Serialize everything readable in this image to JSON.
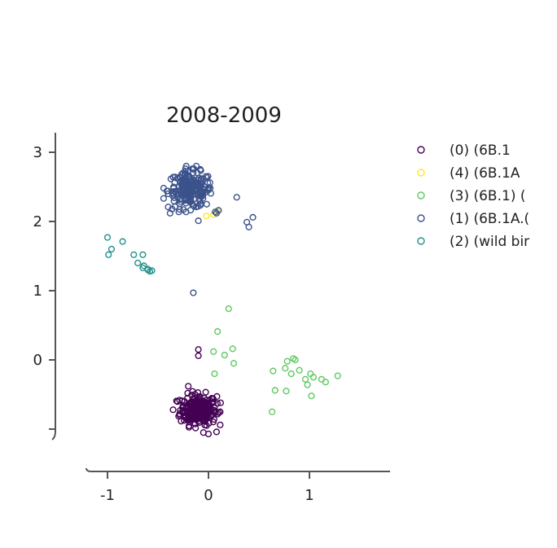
{
  "chart_data": {
    "type": "scatter",
    "title": "2008-2009",
    "xlabel": "",
    "ylabel": "",
    "xlim": [
      -1.05,
      1.8
    ],
    "ylim": [
      -1.1,
      3.3
    ],
    "x_ticks": [
      {
        "value": -1,
        "label": "-1"
      },
      {
        "value": 0,
        "label": "0"
      },
      {
        "value": 1,
        "label": "1"
      }
    ],
    "y_ticks": [
      {
        "value": -1,
        "label": ""
      },
      {
        "value": 0,
        "label": "0"
      },
      {
        "value": 1,
        "label": "1"
      },
      {
        "value": 2,
        "label": "2"
      },
      {
        "value": 3,
        "label": "3"
      }
    ],
    "grid": false,
    "legend_position": "right",
    "series": [
      {
        "name": "(0) (6B.1",
        "color": "#440154",
        "clusters": [
          {
            "cx": -0.1,
            "cy": -0.72,
            "sx": 0.09,
            "sy": 0.11,
            "n": 240
          }
        ],
        "points": [
          [
            -0.1,
            0.15
          ],
          [
            -0.1,
            0.06
          ],
          [
            -0.2,
            -0.38
          ],
          [
            -0.05,
            -1.05
          ],
          [
            0.0,
            -1.07
          ],
          [
            0.08,
            -1.04
          ],
          [
            0.12,
            -0.62
          ],
          [
            -0.35,
            -0.72
          ]
        ]
      },
      {
        "name": "(4) (6B.1A",
        "color": "#fde725",
        "clusters": [],
        "points": [
          [
            -0.02,
            2.08
          ],
          [
            0.05,
            2.1
          ],
          [
            0.09,
            2.14
          ]
        ]
      },
      {
        "name": "(3) (6B.1) (",
        "color": "#5ec962",
        "clusters": [],
        "points": [
          [
            0.2,
            0.74
          ],
          [
            0.09,
            0.41
          ],
          [
            0.24,
            0.16
          ],
          [
            0.05,
            0.12
          ],
          [
            0.16,
            0.07
          ],
          [
            0.25,
            -0.05
          ],
          [
            0.06,
            -0.2
          ],
          [
            0.64,
            -0.16
          ],
          [
            0.78,
            -0.02
          ],
          [
            0.84,
            0.02
          ],
          [
            0.86,
            0.0
          ],
          [
            0.76,
            -0.12
          ],
          [
            0.82,
            -0.2
          ],
          [
            0.9,
            -0.15
          ],
          [
            0.96,
            -0.28
          ],
          [
            1.01,
            -0.2
          ],
          [
            0.98,
            -0.36
          ],
          [
            1.04,
            -0.25
          ],
          [
            1.12,
            -0.28
          ],
          [
            1.16,
            -0.32
          ],
          [
            1.28,
            -0.23
          ],
          [
            0.66,
            -0.44
          ],
          [
            0.77,
            -0.45
          ],
          [
            1.02,
            -0.52
          ],
          [
            0.63,
            -0.75
          ]
        ]
      },
      {
        "name": "(1) (6B.1A.(",
        "color": "#3b528b",
        "clusters": [
          {
            "cx": -0.18,
            "cy": 2.45,
            "sx": 0.11,
            "sy": 0.13,
            "n": 200
          }
        ],
        "points": [
          [
            -0.15,
            0.97
          ],
          [
            0.28,
            2.35
          ],
          [
            0.38,
            1.99
          ],
          [
            0.44,
            2.06
          ],
          [
            0.4,
            1.92
          ],
          [
            -0.38,
            2.12
          ],
          [
            -0.36,
            2.18
          ],
          [
            -0.1,
            2.01
          ],
          [
            0.08,
            2.12
          ],
          [
            0.1,
            2.16
          ],
          [
            -0.16,
            2.76
          ],
          [
            -0.22,
            2.8
          ],
          [
            -0.12,
            2.8
          ]
        ]
      },
      {
        "name": "(2) (wild bir",
        "color": "#21918c",
        "clusters": [],
        "points": [
          [
            -1.0,
            1.77
          ],
          [
            -0.96,
            1.6
          ],
          [
            -0.99,
            1.52
          ],
          [
            -0.85,
            1.71
          ],
          [
            -0.74,
            1.52
          ],
          [
            -0.65,
            1.52
          ],
          [
            -0.7,
            1.4
          ],
          [
            -0.64,
            1.36
          ],
          [
            -0.6,
            1.3
          ],
          [
            -0.58,
            1.28
          ],
          [
            -0.6,
            1.31
          ],
          [
            -0.56,
            1.29
          ],
          [
            -0.65,
            1.33
          ]
        ]
      }
    ]
  }
}
